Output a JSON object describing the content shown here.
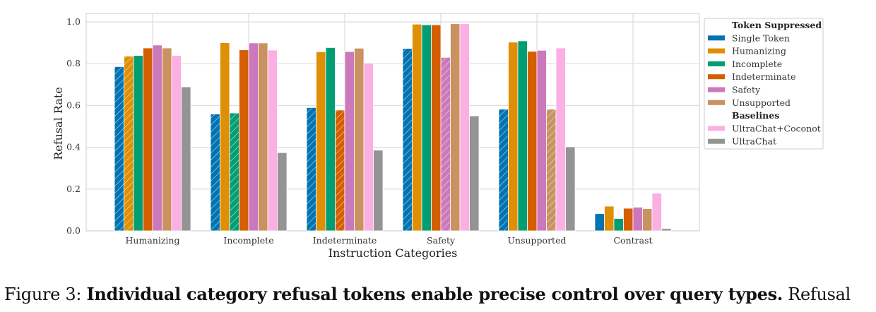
{
  "chart_data": {
    "type": "bar",
    "xlabel": "Instruction Categories",
    "ylabel": "Refusal Rate",
    "ylim": [
      0,
      1.04
    ],
    "yticks": [
      "0.0",
      "0.2",
      "0.4",
      "0.6",
      "0.8",
      "1.0"
    ],
    "grid": true,
    "legend_placement": "right, outside plot",
    "categories": [
      "Humanizing",
      "Incomplete",
      "Indeterminate",
      "Safety",
      "Unsupported",
      "Contrast"
    ],
    "legend": {
      "group1_title": "Token Suppressed",
      "group2_title": "Baselines"
    },
    "hatch_note": "hatched bars: Single Token and the suppressed token matching the category",
    "series": [
      {
        "name": "Single Token",
        "color": "#0173b2",
        "group": 1,
        "values": [
          0.786,
          0.559,
          0.59,
          0.873,
          0.582,
          0.082
        ],
        "hatched": [
          true,
          true,
          true,
          true,
          true,
          false
        ]
      },
      {
        "name": "Humanizing",
        "color": "#de8f05",
        "group": 1,
        "values": [
          0.836,
          0.9,
          0.857,
          0.989,
          0.903,
          0.118
        ],
        "hatched": [
          true,
          false,
          false,
          false,
          false,
          false
        ]
      },
      {
        "name": "Incomplete",
        "color": "#029e73",
        "group": 1,
        "values": [
          0.839,
          0.564,
          0.877,
          0.986,
          0.909,
          0.059
        ],
        "hatched": [
          false,
          true,
          false,
          false,
          false,
          false
        ]
      },
      {
        "name": "Indeterminate",
        "color": "#d55e00",
        "group": 1,
        "values": [
          0.875,
          0.866,
          0.578,
          0.986,
          0.859,
          0.108
        ],
        "hatched": [
          false,
          false,
          true,
          false,
          false,
          false
        ]
      },
      {
        "name": "Safety",
        "color": "#cc78bc",
        "group": 1,
        "values": [
          0.889,
          0.899,
          0.858,
          0.83,
          0.864,
          0.113
        ],
        "hatched": [
          false,
          false,
          false,
          true,
          false,
          false
        ]
      },
      {
        "name": "Unsupported",
        "color": "#ca9161",
        "group": 1,
        "values": [
          0.875,
          0.899,
          0.874,
          0.991,
          0.582,
          0.106
        ],
        "hatched": [
          false,
          false,
          false,
          false,
          true,
          false
        ]
      },
      {
        "name": "UltraChat+Coconot",
        "color": "#fbafe4",
        "group": 2,
        "values": [
          0.839,
          0.865,
          0.803,
          0.991,
          0.875,
          0.18
        ],
        "hatched": [
          false,
          false,
          false,
          false,
          false,
          false
        ]
      },
      {
        "name": "UltraChat",
        "color": "#949494",
        "group": 2,
        "values": [
          0.689,
          0.374,
          0.386,
          0.55,
          0.402,
          0.011
        ],
        "hatched": [
          false,
          false,
          false,
          false,
          false,
          false
        ]
      }
    ]
  },
  "caption": {
    "prefix": "Figure 3: ",
    "bold": "Individual category refusal tokens enable precise control over query types.",
    "rest": " Refusal"
  }
}
